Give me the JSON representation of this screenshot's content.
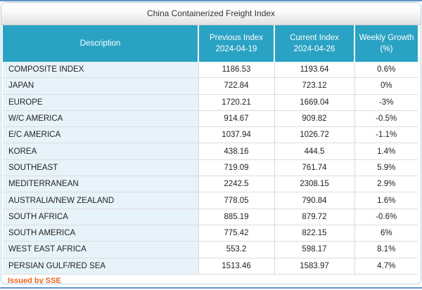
{
  "panel": {
    "title": "China Containerized Freight Index",
    "footer": "Issued by SSE"
  },
  "table": {
    "headers": [
      {
        "line1": "Description",
        "line2": ""
      },
      {
        "line1": "Previous Index",
        "line2": "2024-04-19"
      },
      {
        "line1": "Current Index",
        "line2": "2024-04-26"
      },
      {
        "line1": "Weekly Growth",
        "line2": "(%)"
      }
    ],
    "rows": [
      [
        "COMPOSITE INDEX",
        "1186.53",
        "1193.64",
        "0.6%"
      ],
      [
        "JAPAN",
        "722.84",
        "723.12",
        "0%"
      ],
      [
        "EUROPE",
        "1720.21",
        "1669.04",
        "-3%"
      ],
      [
        "W/C AMERICA",
        "914.67",
        "909.82",
        "-0.5%"
      ],
      [
        "E/C AMERICA",
        "1037.94",
        "1026.72",
        "-1.1%"
      ],
      [
        "KOREA",
        "438.16",
        "444.5",
        "1.4%"
      ],
      [
        "SOUTHEAST",
        "719.09",
        "761.74",
        "5.9%"
      ],
      [
        "MEDITERRANEAN",
        "2242.5",
        "2308.15",
        "2.9%"
      ],
      [
        "AUSTRALIA/NEW ZEALAND",
        "778.05",
        "790.84",
        "1.6%"
      ],
      [
        "SOUTH AFRICA",
        "885.19",
        "879.72",
        "-0.6%"
      ],
      [
        "SOUTH AMERICA",
        "775.42",
        "822.15",
        "6%"
      ],
      [
        "WEST EAST AFRICA",
        "553.2",
        "598.17",
        "8.1%"
      ],
      [
        "PERSIAN GULF/RED SEA",
        "1513.46",
        "1583.97",
        "4.7%"
      ]
    ]
  },
  "colors": {
    "header_teal": "#2AA2C4",
    "row_highlight_blue": "#E7F3FA",
    "frame_blue": "#6095C1",
    "panel_border": "#B6CFE2",
    "footer_orange": "#F0641E"
  }
}
